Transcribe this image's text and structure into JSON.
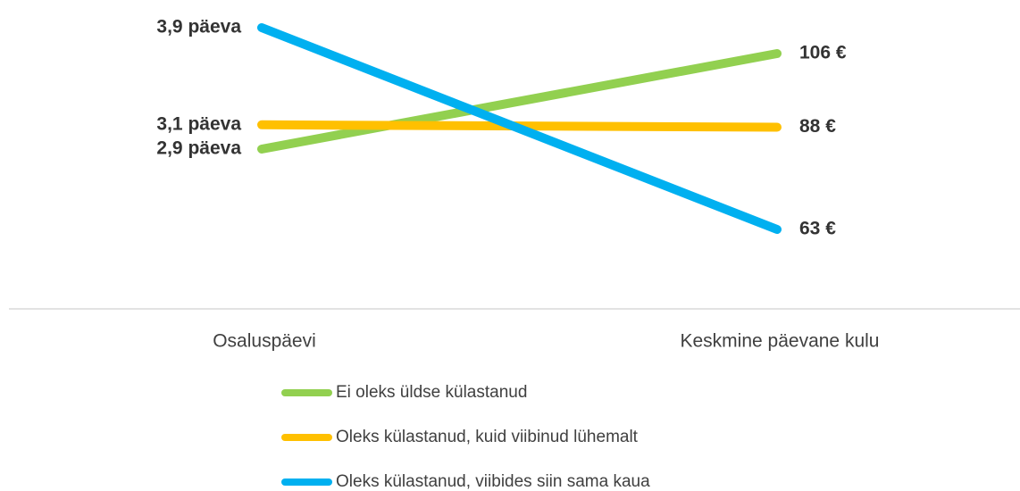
{
  "chart_data": {
    "type": "slope",
    "categories": [
      "Osaluspäevi",
      "Keskmine päevane kulu"
    ],
    "series": [
      {
        "name": "Ei oleks üldse külastanud",
        "color": "#92d050",
        "values": [
          2.9,
          106
        ],
        "value_labels": [
          "2,9 päeva",
          "106 €"
        ]
      },
      {
        "name": "Oleks külastanud, kuid viibinud lühemalt",
        "color": "#ffc000",
        "values": [
          3.1,
          88
        ],
        "value_labels": [
          "3,1 päeva",
          "88 €"
        ]
      },
      {
        "name": "Oleks külastanud, viibides siin sama kaua",
        "color": "#00b0f0",
        "values": [
          3.9,
          63
        ],
        "value_labels": [
          "3,9 päeva",
          "63 €"
        ]
      }
    ]
  }
}
